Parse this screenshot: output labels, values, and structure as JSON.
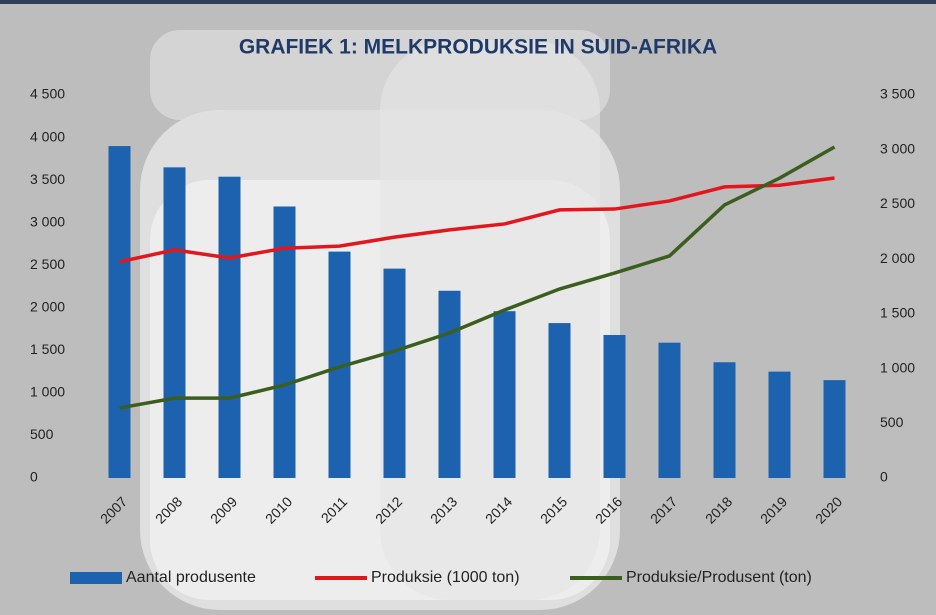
{
  "chart_data": {
    "type": "bar",
    "title": "GRAFIEK 1: MELKPRODUKSIE IN SUID-AFRIKA",
    "categories": [
      "2007",
      "2008",
      "2009",
      "2010",
      "2011",
      "2012",
      "2013",
      "2014",
      "2015",
      "2016",
      "2017",
      "2018",
      "2019",
      "2020"
    ],
    "series": [
      {
        "name": "Aantal produsente",
        "type": "bar",
        "color": "#1c62ae",
        "values": [
          3900,
          3650,
          3540,
          3190,
          2660,
          2460,
          2200,
          1960,
          1820,
          1680,
          1590,
          1360,
          1250,
          1150
        ]
      },
      {
        "name": "Produksie (1000 ton)",
        "type": "line",
        "color": "#e3161d",
        "values": [
          2540,
          2680,
          2585,
          2700,
          2725,
          2830,
          2915,
          2985,
          3150,
          3160,
          3255,
          3420,
          3440,
          3525
        ]
      },
      {
        "name": "Produksie/Produsent (ton)",
        "type": "line",
        "axis": "y2",
        "color": "#3b5e1f",
        "values": [
          640,
          730,
          730,
          850,
          1015,
          1160,
          1325,
          1535,
          1727,
          1873,
          2029,
          2495,
          2740,
          3025
        ]
      }
    ],
    "ylim": [
      0,
      4500
    ],
    "yticks": [
      0,
      500,
      {
        "value": 1000,
        "label": "1 000"
      },
      {
        "value": 1500,
        "label": "1 500"
      },
      {
        "value": 2000,
        "label": "2 000"
      },
      {
        "value": 2500,
        "label": "2 500"
      },
      {
        "value": 3000,
        "label": "3 000"
      },
      {
        "value": 3500,
        "label": "3 500"
      },
      {
        "value": 4000,
        "label": "4 000"
      },
      {
        "value": 4500,
        "label": "4 500"
      }
    ],
    "y2lim": [
      0,
      3500
    ],
    "y2ticks": [
      0,
      500,
      {
        "value": 1000,
        "label": "1 000"
      },
      {
        "value": 1500,
        "label": "1 500"
      },
      {
        "value": 2000,
        "label": "2 000"
      },
      {
        "value": 2500,
        "label": "2 500"
      },
      {
        "value": 3000,
        "label": "3 000"
      },
      {
        "value": 3500,
        "label": "3 500"
      }
    ],
    "legend": "bottom"
  }
}
